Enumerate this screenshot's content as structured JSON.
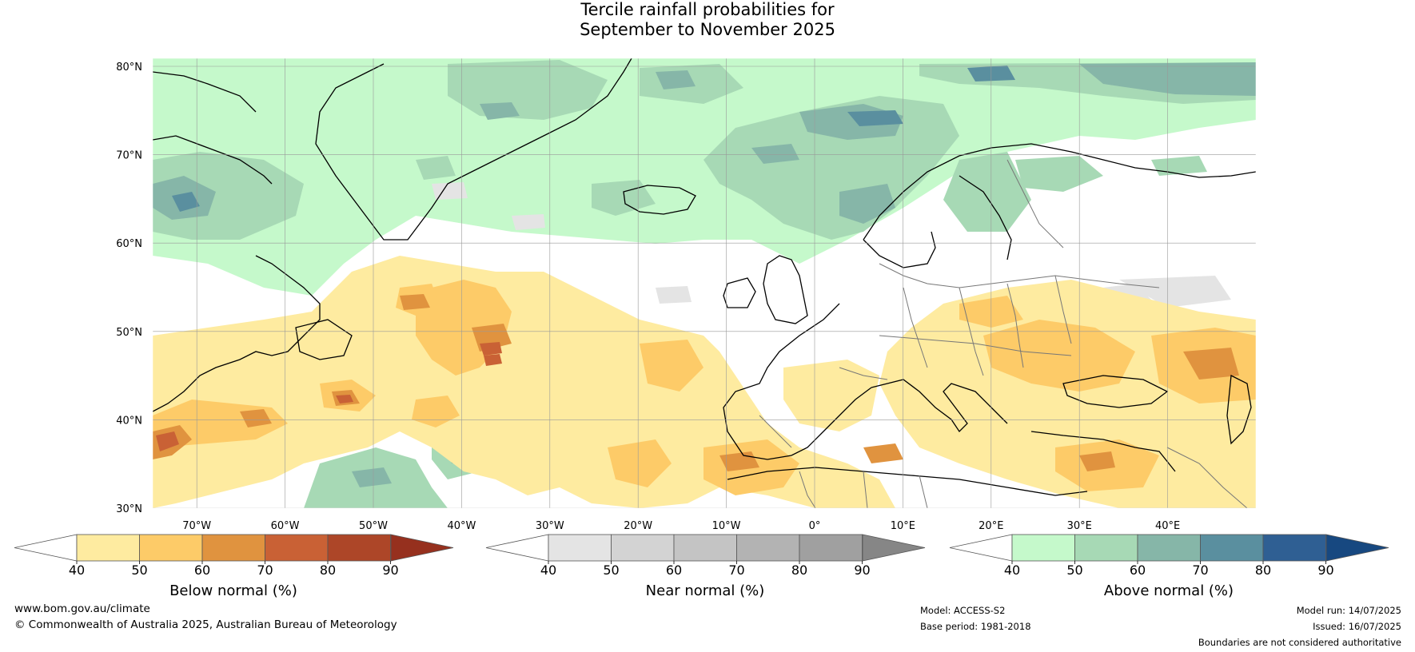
{
  "title": {
    "line1": "Tercile rainfall probabilities for",
    "line2": "September to November 2025"
  },
  "map": {
    "lat_labels": [
      "80°N",
      "70°N",
      "60°N",
      "50°N",
      "40°N",
      "30°N"
    ],
    "lon_labels": [
      "70°W",
      "60°W",
      "50°W",
      "40°W",
      "30°W",
      "20°W",
      "10°W",
      "0°",
      "10°E",
      "20°E",
      "30°E",
      "40°E"
    ],
    "ocean_color": "#ffffff"
  },
  "colorbars": [
    {
      "label": "Below normal (%)",
      "ticks": [
        "40",
        "50",
        "60",
        "70",
        "80",
        "90"
      ],
      "low_color": "#ffffff",
      "colors": [
        "#feeba0",
        "#fdcb68",
        "#e0933f",
        "#c96135",
        "#ad4628"
      ],
      "high_color": "#96301e"
    },
    {
      "label": "Near normal (%)",
      "ticks": [
        "40",
        "50",
        "60",
        "70",
        "80",
        "90"
      ],
      "low_color": "#ffffff",
      "colors": [
        "#e4e4e4",
        "#d3d3d3",
        "#c4c4c4",
        "#b3b3b3",
        "#a0a0a0"
      ],
      "high_color": "#868686"
    },
    {
      "label": "Above normal (%)",
      "ticks": [
        "40",
        "50",
        "60",
        "70",
        "80",
        "90"
      ],
      "low_color": "#ffffff",
      "colors": [
        "#c5f9cb",
        "#a7d9b5",
        "#86b6a8",
        "#5a8f9f",
        "#2f5f93"
      ],
      "high_color": "#174880"
    }
  ],
  "footer": {
    "website": "www.bom.gov.au/climate",
    "copyright": "© Commonwealth of Australia 2025, Australian Bureau of Meteorology",
    "model": "Model: ACCESS-S2",
    "base_period": "Base period: 1981-2018",
    "model_run": "Model run: 14/07/2025",
    "issued": "Issued: 16/07/2025",
    "disclaimer": "Boundaries are not considered authoritative"
  }
}
